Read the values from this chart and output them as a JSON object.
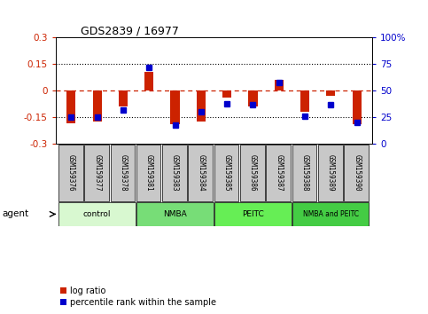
{
  "title": "GDS2839 / 16977",
  "samples": [
    "GSM159376",
    "GSM159377",
    "GSM159378",
    "GSM159381",
    "GSM159383",
    "GSM159384",
    "GSM159385",
    "GSM159386",
    "GSM159387",
    "GSM159388",
    "GSM159389",
    "GSM159390"
  ],
  "log_ratio": [
    -0.185,
    -0.175,
    -0.09,
    0.105,
    -0.19,
    -0.175,
    -0.04,
    -0.09,
    0.06,
    -0.12,
    -0.03,
    -0.19
  ],
  "percentile_rank": [
    25,
    25,
    32,
    72,
    18,
    30,
    38,
    37,
    58,
    26,
    37,
    20
  ],
  "groups": [
    {
      "label": "control",
      "start": 0,
      "end": 3,
      "color": "#d8f8d0"
    },
    {
      "label": "NMBA",
      "start": 3,
      "end": 6,
      "color": "#77dd77"
    },
    {
      "label": "PEITC",
      "start": 6,
      "end": 9,
      "color": "#66ee55"
    },
    {
      "label": "NMBA and PEITC",
      "start": 9,
      "end": 12,
      "color": "#44cc44"
    }
  ],
  "ylim": [
    -0.3,
    0.3
  ],
  "yticks_left": [
    -0.3,
    -0.15,
    0,
    0.15,
    0.3
  ],
  "yticks_right": [
    0,
    25,
    50,
    75,
    100
  ],
  "bar_color": "#cc2200",
  "dot_color": "#0000cc",
  "background_sample": "#c8c8c8",
  "agent_label": "agent",
  "legend_log_ratio": "log ratio",
  "legend_percentile": "percentile rank within the sample"
}
